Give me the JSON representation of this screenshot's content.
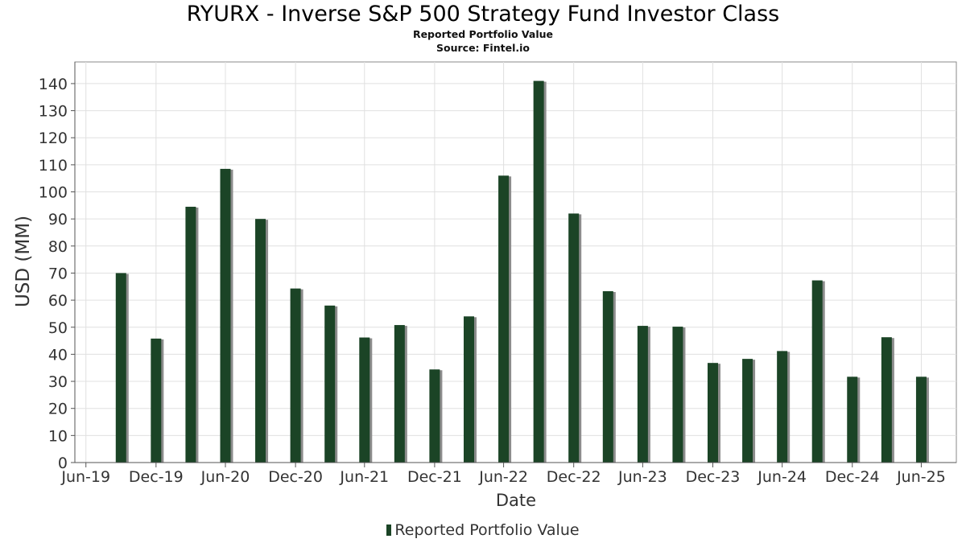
{
  "chart_data": {
    "type": "bar",
    "title": "RYURX - Inverse S&P 500 Strategy Fund Investor Class",
    "subtitle": "Reported Portfolio Value",
    "source": "Source: Fintel.io",
    "xlabel": "Date",
    "ylabel": "USD (MM)",
    "ylim": [
      0,
      148
    ],
    "yticks": [
      0,
      10,
      20,
      30,
      40,
      50,
      60,
      70,
      80,
      90,
      100,
      110,
      120,
      130,
      140
    ],
    "xlim": [
      "2019-06-01",
      "2025-09-30"
    ],
    "xticks": [
      {
        "date": "2019-06-30",
        "label": "Jun-19"
      },
      {
        "date": "2019-12-31",
        "label": "Dec-19"
      },
      {
        "date": "2020-06-30",
        "label": "Jun-20"
      },
      {
        "date": "2020-12-31",
        "label": "Dec-20"
      },
      {
        "date": "2021-06-30",
        "label": "Jun-21"
      },
      {
        "date": "2021-12-31",
        "label": "Dec-21"
      },
      {
        "date": "2022-06-30",
        "label": "Jun-22"
      },
      {
        "date": "2022-12-31",
        "label": "Dec-22"
      },
      {
        "date": "2023-06-30",
        "label": "Jun-23"
      },
      {
        "date": "2023-12-31",
        "label": "Dec-23"
      },
      {
        "date": "2024-06-30",
        "label": "Jun-24"
      },
      {
        "date": "2024-12-31",
        "label": "Dec-24"
      },
      {
        "date": "2025-06-30",
        "label": "Jun-25"
      }
    ],
    "grid": true,
    "legend_position": "bottom-center",
    "bar_color": "#1b4426",
    "series": [
      {
        "name": "Reported Portfolio Value",
        "points": [
          {
            "date": "2019-09-30",
            "value": 70
          },
          {
            "date": "2019-12-31",
            "value": 45.8
          },
          {
            "date": "2020-03-31",
            "value": 94.5
          },
          {
            "date": "2020-06-30",
            "value": 108.5
          },
          {
            "date": "2020-09-30",
            "value": 90
          },
          {
            "date": "2020-12-31",
            "value": 64.3
          },
          {
            "date": "2021-03-31",
            "value": 58
          },
          {
            "date": "2021-06-30",
            "value": 46.2
          },
          {
            "date": "2021-09-30",
            "value": 50.8
          },
          {
            "date": "2021-12-31",
            "value": 34.4
          },
          {
            "date": "2022-03-31",
            "value": 54
          },
          {
            "date": "2022-06-30",
            "value": 106
          },
          {
            "date": "2022-09-30",
            "value": 141
          },
          {
            "date": "2022-12-31",
            "value": 92
          },
          {
            "date": "2023-03-31",
            "value": 63.3
          },
          {
            "date": "2023-06-30",
            "value": 50.5
          },
          {
            "date": "2023-09-30",
            "value": 50.2
          },
          {
            "date": "2023-12-31",
            "value": 36.8
          },
          {
            "date": "2024-03-31",
            "value": 38.3
          },
          {
            "date": "2024-06-30",
            "value": 41.2
          },
          {
            "date": "2024-09-30",
            "value": 67.3
          },
          {
            "date": "2024-12-31",
            "value": 31.7
          },
          {
            "date": "2025-03-31",
            "value": 46.3
          },
          {
            "date": "2025-06-30",
            "value": 31.7
          }
        ]
      }
    ]
  }
}
